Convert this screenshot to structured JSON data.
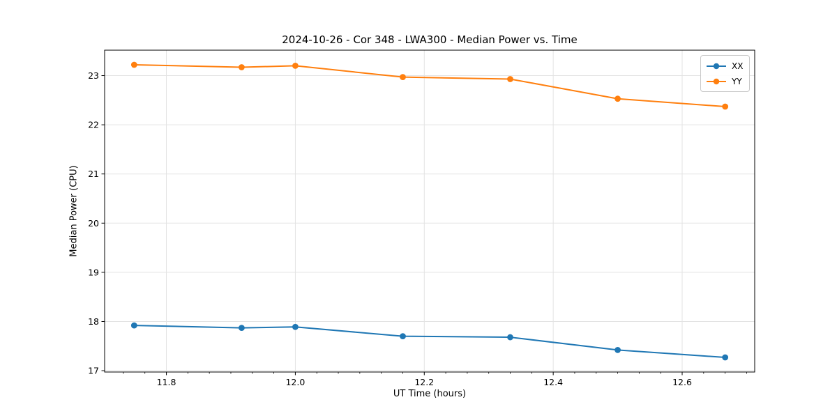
{
  "chart_data": {
    "type": "line",
    "title": "2024-10-26 - Cor 348 - LWA300 - Median Power vs. Time",
    "xlabel": "UT Time (hours)",
    "ylabel": "Median Power (CPU)",
    "x": [
      11.75,
      11.9167,
      12.0,
      12.1667,
      12.3333,
      12.5,
      12.6667
    ],
    "series": [
      {
        "name": "XX",
        "color": "#1f77b4",
        "values": [
          17.92,
          17.87,
          17.89,
          17.7,
          17.68,
          17.42,
          17.27
        ]
      },
      {
        "name": "YY",
        "color": "#ff7f0e",
        "values": [
          23.22,
          23.17,
          23.2,
          22.97,
          22.93,
          22.53,
          22.37
        ]
      }
    ],
    "xlim": [
      11.7042,
      12.7125
    ],
    "ylim": [
      16.9725,
      23.5175
    ],
    "x_ticks": [
      11.8,
      12.0,
      12.2,
      12.4,
      12.6
    ],
    "x_tick_labels": [
      "11.8",
      "12.0",
      "12.2",
      "12.4",
      "12.6"
    ],
    "x_minor_step": 0.0333333,
    "y_ticks": [
      17,
      18,
      19,
      20,
      21,
      22,
      23
    ],
    "y_tick_labels": [
      "17",
      "18",
      "19",
      "20",
      "21",
      "22",
      "23"
    ],
    "grid": true,
    "legend_position": "upper right",
    "colors": {
      "grid": "#e3e3e3",
      "spine": "#000000",
      "tick": "#000000",
      "tick_label": "#000000",
      "background": "#ffffff"
    }
  }
}
